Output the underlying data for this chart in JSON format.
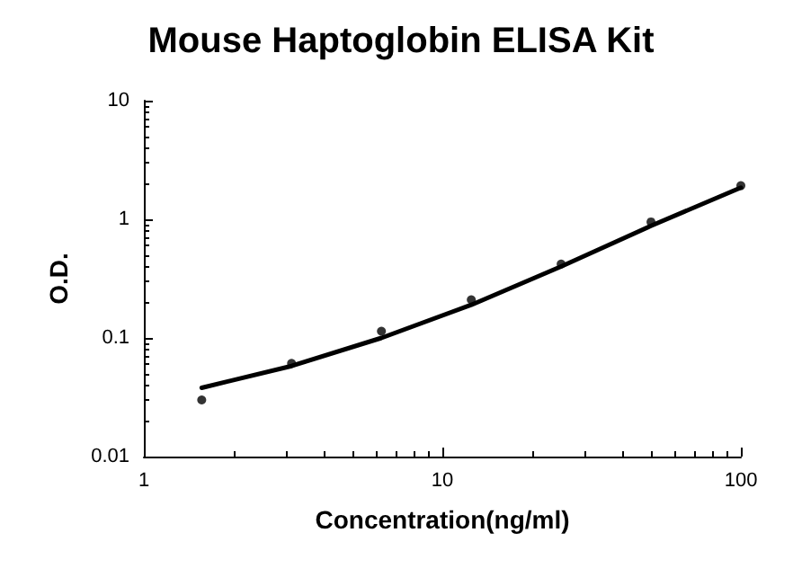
{
  "chart_data": {
    "type": "scatter",
    "title": "Mouse Haptoglobin ELISA Kit",
    "xlabel": "Concentration(ng/ml)",
    "ylabel": "O.D.",
    "log": "xy",
    "xlim": [
      1,
      100
    ],
    "xticks": [
      1,
      10,
      100
    ],
    "ylim": [
      0.01,
      10
    ],
    "yticks": [
      0.01,
      0.1,
      1,
      10
    ],
    "grid": false,
    "series": [
      {
        "color": "#000000",
        "marker": "circle",
        "x": [
          1.5625,
          3.125,
          6.25,
          12.5,
          25,
          50,
          100
        ],
        "values": [
          0.03,
          0.061,
          0.114,
          0.21,
          0.42,
          0.95,
          1.92
        ]
      },
      {
        "type": "line",
        "color": "#000000",
        "marker": "none",
        "line_style": "solid",
        "x": [
          1.5625,
          3.125,
          6.25,
          12.5,
          25,
          50,
          100
        ],
        "values": [
          0.038,
          0.058,
          0.1,
          0.19,
          0.4,
          0.88,
          1.85
        ]
      }
    ]
  }
}
